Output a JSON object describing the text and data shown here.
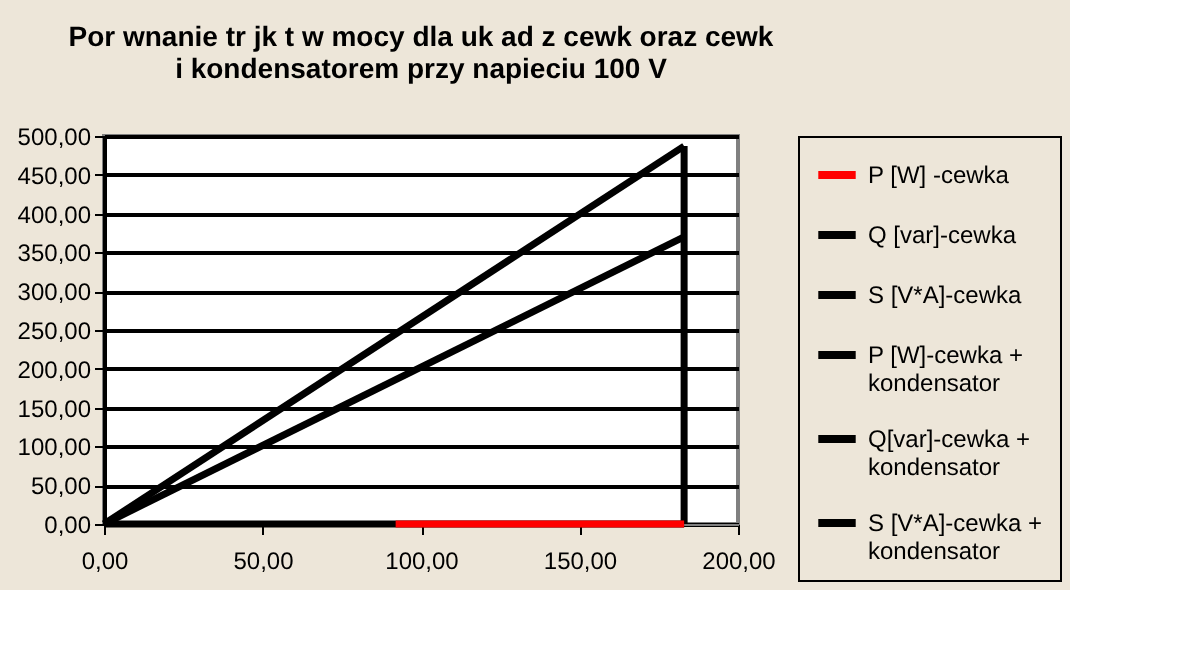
{
  "chart_data": {
    "type": "line",
    "title": "Por  wnanie tr  jk  t  w mocy dla uk ad z cewk   oraz cewk\ni kondensatorem przy napieciu 100 V",
    "xlim": [
      0,
      200
    ],
    "xticks": [
      {
        "value": 0,
        "label": "0,00"
      },
      {
        "value": 50,
        "label": "50,00"
      },
      {
        "value": 100,
        "label": "100,00"
      },
      {
        "value": 150,
        "label": "150,00"
      },
      {
        "value": 200,
        "label": "200,00"
      }
    ],
    "ylim": [
      0,
      500
    ],
    "yticks": [
      {
        "value": 0,
        "label": "0,00"
      },
      {
        "value": 50,
        "label": "50,00"
      },
      {
        "value": 100,
        "label": "100,00"
      },
      {
        "value": 150,
        "label": "150,00"
      },
      {
        "value": 200,
        "label": "200,00"
      },
      {
        "value": 250,
        "label": "250,00"
      },
      {
        "value": 300,
        "label": "300,00"
      },
      {
        "value": 350,
        "label": "350,00"
      },
      {
        "value": 400,
        "label": "400,00"
      },
      {
        "value": 450,
        "label": "450,00"
      },
      {
        "value": 500,
        "label": "500,00"
      }
    ],
    "grid": "y",
    "legend": "right",
    "marker": "none",
    "line_style": "solid",
    "series": [
      {
        "name": "P [W] -cewka",
        "color": "#ff0000",
        "x": [
          92,
          183
        ],
        "values": [
          0,
          0
        ]
      },
      {
        "name": "Q [var]-cewka",
        "color": "#000000",
        "x": [
          183,
          183
        ],
        "values": [
          0,
          487
        ]
      },
      {
        "name": "S [V*A]-cewka",
        "color": "#000000",
        "x": [
          0,
          183
        ],
        "values": [
          0,
          487
        ]
      },
      {
        "name": "P [W]-cewka + kondensator",
        "color": "#000000",
        "x": [
          0,
          183
        ],
        "values": [
          0,
          0
        ]
      },
      {
        "name": "Q[var]-cewka + kondensator",
        "color": "#000000"
      },
      {
        "name": "S [V*A]-cewka + kondensator",
        "color": "#000000",
        "x": [
          0,
          183
        ],
        "values": [
          0,
          370
        ]
      }
    ]
  }
}
